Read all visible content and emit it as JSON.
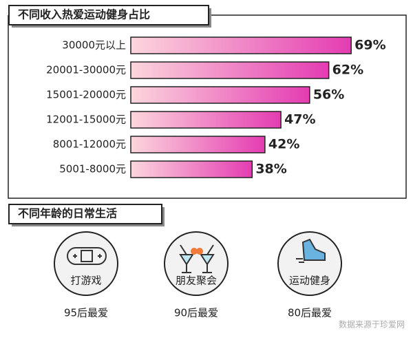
{
  "chart_data": {
    "type": "bar",
    "orientation": "horizontal",
    "title": "不同收入热爱运动健身占比",
    "categories": [
      "30000元以上",
      "20001-30000元",
      "15001-20000元",
      "12001-15000元",
      "8001-12000元",
      "5001-8000元"
    ],
    "values": [
      69,
      62,
      56,
      47,
      42,
      38
    ],
    "value_labels": [
      "69%",
      "62%",
      "56%",
      "47%",
      "42%",
      "38%"
    ],
    "gradient": [
      "#fcd6dc",
      "#e43cb2"
    ]
  },
  "lifestyle": {
    "title": "不同年龄的日常生活",
    "items": [
      {
        "activity": "打游戏",
        "group": "95后最爱"
      },
      {
        "activity": "朋友聚会",
        "group": "90后最爱"
      },
      {
        "activity": "运动健身",
        "group": "80后最爱"
      }
    ]
  },
  "source": "数据来源于珍爱网"
}
